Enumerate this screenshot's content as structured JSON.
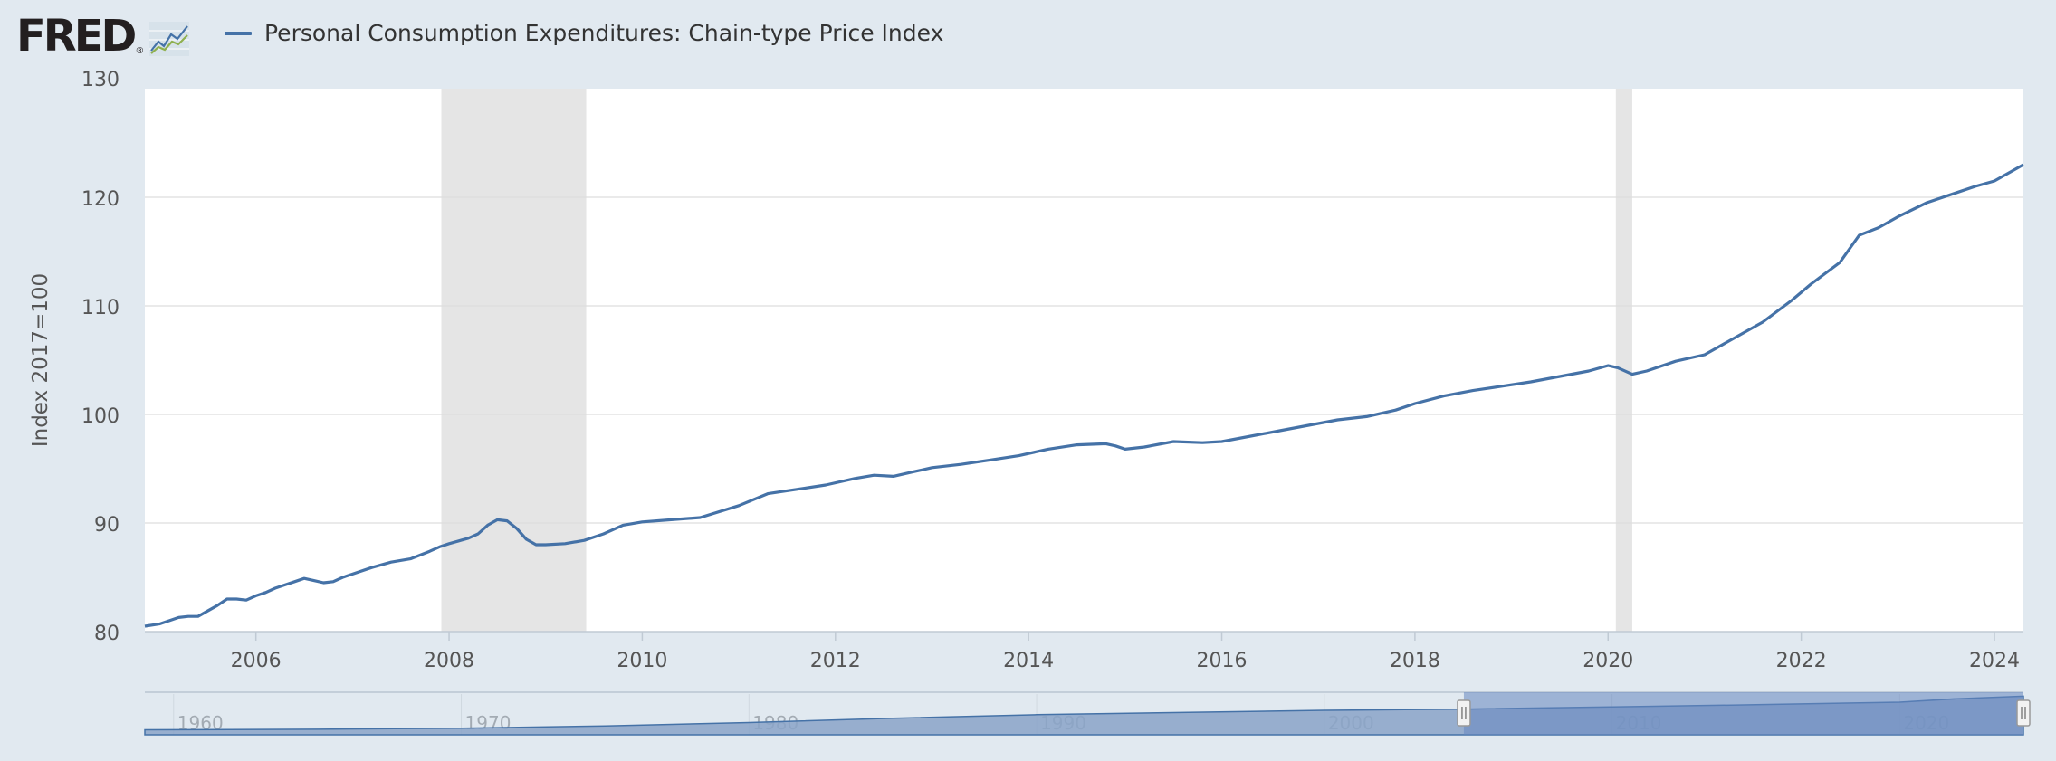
{
  "header": {
    "logo_text": "FRED",
    "logo_mark": "®",
    "logo_icon": "line-chart-icon",
    "legend_label": "Personal Consumption Expenditures: Chain-type Price Index"
  },
  "colors": {
    "background": "#e1e9f0",
    "plot_background": "#ffffff",
    "series_line": "#4572a7",
    "recession_band": "#e5e5e5",
    "gridline": "#dddddd",
    "navigator_fill": "#8aa3c8",
    "navigator_selected": "#6686c0"
  },
  "chart_data": {
    "type": "line",
    "title": "",
    "ylabel": "Index 2017=100",
    "xlabel": "",
    "xlim": [
      2004.85,
      2024.3
    ],
    "ylim": [
      80,
      130
    ],
    "y_ticks": [
      "80",
      "90",
      "100",
      "110",
      "120",
      "130"
    ],
    "x_ticks": [
      "2006",
      "2008",
      "2010",
      "2012",
      "2014",
      "2016",
      "2018",
      "2020",
      "2022",
      "2024"
    ],
    "grid": true,
    "legend": "top-left",
    "recessions": [
      {
        "start": 2007.92,
        "end": 2009.42
      },
      {
        "start": 2020.08,
        "end": 2020.25
      }
    ],
    "series": [
      {
        "name": "Personal Consumption Expenditures: Chain-type Price Index",
        "x": [
          2004.85,
          2005.0,
          2005.1,
          2005.2,
          2005.3,
          2005.4,
          2005.5,
          2005.6,
          2005.7,
          2005.8,
          2005.9,
          2006.0,
          2006.1,
          2006.2,
          2006.3,
          2006.4,
          2006.5,
          2006.6,
          2006.7,
          2006.8,
          2006.9,
          2007.0,
          2007.2,
          2007.4,
          2007.6,
          2007.8,
          2007.9,
          2008.0,
          2008.2,
          2008.3,
          2008.4,
          2008.5,
          2008.6,
          2008.7,
          2008.8,
          2008.9,
          2009.0,
          2009.2,
          2009.4,
          2009.6,
          2009.8,
          2010.0,
          2010.3,
          2010.6,
          2011.0,
          2011.3,
          2011.6,
          2011.9,
          2012.2,
          2012.4,
          2012.6,
          2012.8,
          2013.0,
          2013.3,
          2013.6,
          2013.9,
          2014.2,
          2014.5,
          2014.8,
          2014.9,
          2015.0,
          2015.2,
          2015.5,
          2015.8,
          2016.0,
          2016.3,
          2016.6,
          2016.9,
          2017.2,
          2017.5,
          2017.8,
          2018.0,
          2018.3,
          2018.6,
          2018.9,
          2019.2,
          2019.5,
          2019.8,
          2020.0,
          2020.1,
          2020.25,
          2020.4,
          2020.7,
          2021.0,
          2021.3,
          2021.6,
          2021.9,
          2022.1,
          2022.4,
          2022.6,
          2022.8,
          2023.0,
          2023.3,
          2023.6,
          2023.8,
          2024.0,
          2024.3
        ],
        "values": [
          80.5,
          80.7,
          81.0,
          81.3,
          81.4,
          81.4,
          81.9,
          82.4,
          83.0,
          83.0,
          82.9,
          83.3,
          83.6,
          84.0,
          84.3,
          84.6,
          84.9,
          84.7,
          84.5,
          84.6,
          85.0,
          85.3,
          85.9,
          86.4,
          86.7,
          87.4,
          87.8,
          88.1,
          88.6,
          89.0,
          89.8,
          90.3,
          90.2,
          89.5,
          88.5,
          88.0,
          88.0,
          88.1,
          88.4,
          89.0,
          89.8,
          90.1,
          90.3,
          90.5,
          91.6,
          92.7,
          93.1,
          93.5,
          94.1,
          94.4,
          94.3,
          94.7,
          95.1,
          95.4,
          95.8,
          96.2,
          96.8,
          97.2,
          97.3,
          97.1,
          96.8,
          97.0,
          97.5,
          97.4,
          97.5,
          98.0,
          98.5,
          99.0,
          99.5,
          99.8,
          100.4,
          101.0,
          101.7,
          102.2,
          102.6,
          103.0,
          103.5,
          104.0,
          104.5,
          104.3,
          103.7,
          104.0,
          104.9,
          105.5,
          107.0,
          108.5,
          110.5,
          112.0,
          114.0,
          116.5,
          117.2,
          118.2,
          119.5,
          120.4,
          121.0,
          121.5,
          123.0
        ]
      }
    ],
    "navigator": {
      "x_ticks": [
        "1960",
        "1970",
        "1980",
        "1990",
        "2000",
        "2010",
        "2020"
      ],
      "range": [
        1959,
        2024.3
      ],
      "selected": [
        2004.85,
        2024.3
      ],
      "series": [
        {
          "x": [
            1959,
            1965,
            1970,
            1975,
            1980,
            1985,
            1990,
            1995,
            2000,
            2005,
            2010,
            2015,
            2020,
            2022,
            2024.3
          ],
          "values": [
            16,
            17.5,
            21,
            28,
            39,
            53,
            64,
            71,
            78,
            82,
            89,
            96,
            104,
            115,
            123
          ]
        }
      ]
    }
  }
}
